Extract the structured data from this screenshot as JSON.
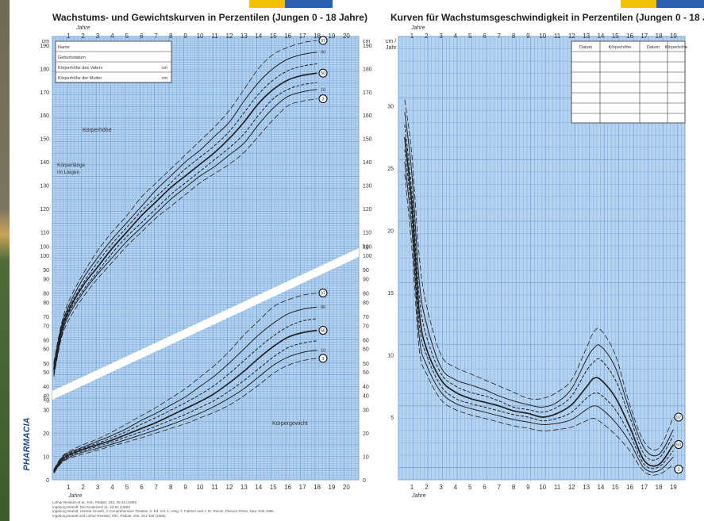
{
  "left": {
    "title": "Wachstums- und Gewichtskurven in Perzentilen (Jungen 0 - 18 Jahre)",
    "top_axis_label": "Jahre",
    "bottom_axis_label": "Jahre",
    "years": [
      "1",
      "2",
      "3",
      "4",
      "5",
      "6",
      "7",
      "8",
      "9",
      "10",
      "11",
      "12",
      "13",
      "14",
      "15",
      "16",
      "17",
      "18",
      "19",
      "20"
    ],
    "unit_cm": "cm",
    "unit_kg": "kg",
    "height_ticks": [
      "40",
      "50",
      "60",
      "70",
      "80",
      "90",
      "100",
      "110",
      "120",
      "130",
      "140",
      "150",
      "160",
      "170",
      "180",
      "190"
    ],
    "weight_ticks": [
      "0",
      "10",
      "20",
      "30",
      "40",
      "50",
      "60",
      "70",
      "80",
      "90",
      "100"
    ],
    "form": [
      {
        "label": "Name",
        "unit": ""
      },
      {
        "label": "Geburtsdatum",
        "unit": ""
      },
      {
        "label": "Körperhöhe des Vaters",
        "unit": "cm"
      },
      {
        "label": "Körperhöhe der Mutter",
        "unit": "cm"
      }
    ],
    "label_height": "Körperhöhe",
    "label_length_1": "Körperlänge",
    "label_length_2": "im Liegen",
    "label_weight": "Körpergewicht",
    "brand": "PHARMACIA",
    "height_percentile_markers": [
      "97",
      "90",
      "50",
      "10",
      "3"
    ],
    "weight_percentile_markers": [
      "97",
      "90",
      "50",
      "10",
      "3"
    ],
    "references": [
      "Lothar Reinken et al., Klin. Pädiatr. 192, 25-33 (1980)",
      "Ingeborg Brandt: Der Kinderarzt 11, 43-51 (1980)",
      "Ingeborg Brandt: Human Growth, A Comprehensive Treatise, 2. Ed. Vol. 1, Hrsg. F. Falkner und J. M. Tanner, Plenum Press, New York 1986",
      "Ingeborg Brandt und Lothar Reinken, Klin. Pädiatr. 200, 451-456 (1988)"
    ]
  },
  "right": {
    "title": "Kurven für Wachstumsgeschwindigkeit in Perzentilen (Jungen 0 - 18 Jahre)",
    "top_axis_label": "Jahre",
    "bottom_axis_label": "Jahre",
    "years": [
      "1",
      "2",
      "3",
      "4",
      "5",
      "6",
      "7",
      "8",
      "9",
      "10",
      "11",
      "12",
      "13",
      "14",
      "15",
      "16",
      "17",
      "18",
      "19"
    ],
    "y_unit_1": "cm /",
    "y_unit_2": "Jahr",
    "y_ticks": [
      "5",
      "10",
      "15",
      "20",
      "25",
      "30"
    ],
    "table_headers": [
      "Datum",
      "Körperhöhe",
      "Datum",
      "Körperhöhe"
    ],
    "percentile_markers": [
      "97",
      "50",
      "3"
    ]
  },
  "colors": {
    "grid_bg": "#b5d2f0",
    "grid_line": "#6f9fd3",
    "curve": "#222222",
    "accent_yellow": "#f2c200",
    "accent_blue": "#2d5fb0"
  },
  "chart_data": [
    {
      "type": "line",
      "title": "Wachstums- und Gewichtskurven in Perzentilen (Jungen 0 - 18 Jahre)",
      "xlabel": "Jahre",
      "ylabel": "cm",
      "xlim": [
        0,
        21
      ],
      "ylim": [
        40,
        195
      ],
      "x": [
        0,
        0.5,
        1,
        2,
        3,
        4,
        5,
        6,
        7,
        8,
        9,
        10,
        11,
        12,
        13,
        14,
        15,
        16,
        17,
        18
      ],
      "series": [
        {
          "name": "97",
          "values": [
            54,
            70,
            80,
            92,
            102,
            110,
            117,
            125,
            131,
            137,
            143,
            149,
            155,
            162,
            171,
            180,
            186,
            189,
            191,
            192
          ]
        },
        {
          "name": "90",
          "values": [
            53,
            69,
            78,
            90,
            99,
            107,
            114,
            121,
            128,
            134,
            140,
            145,
            151,
            157,
            166,
            174,
            180,
            184,
            186,
            187
          ]
        },
        {
          "name": "75",
          "values": [
            52,
            68,
            77,
            88,
            97,
            105,
            112,
            119,
            125,
            131,
            137,
            142,
            147,
            153,
            161,
            169,
            175,
            179,
            181,
            182
          ]
        },
        {
          "name": "50",
          "values": [
            51,
            67,
            76,
            87,
            95,
            103,
            110,
            117,
            123,
            129,
            134,
            139,
            144,
            150,
            157,
            165,
            171,
            175,
            177,
            178
          ]
        },
        {
          "name": "25",
          "values": [
            50,
            66,
            75,
            85,
            93,
            101,
            108,
            114,
            120,
            126,
            131,
            136,
            141,
            146,
            152,
            160,
            167,
            171,
            173,
            174
          ]
        },
        {
          "name": "10",
          "values": [
            49,
            65,
            74,
            84,
            92,
            99,
            106,
            112,
            118,
            124,
            129,
            134,
            138,
            143,
            148,
            156,
            163,
            168,
            170,
            171
          ]
        },
        {
          "name": "3",
          "values": [
            48,
            64,
            72,
            82,
            90,
            97,
            104,
            110,
            116,
            121,
            126,
            131,
            135,
            139,
            144,
            151,
            158,
            164,
            166,
            167
          ]
        }
      ]
    },
    {
      "type": "line",
      "title": "",
      "xlabel": "Jahre",
      "ylabel": "kg",
      "xlim": [
        0,
        21
      ],
      "ylim": [
        0,
        100
      ],
      "x": [
        0,
        0.5,
        1,
        2,
        3,
        4,
        5,
        6,
        7,
        8,
        9,
        10,
        11,
        12,
        13,
        14,
        15,
        16,
        17,
        18
      ],
      "series": [
        {
          "name": "97",
          "values": [
            4.3,
            9.5,
            12,
            15,
            17.5,
            20.5,
            24,
            27.5,
            31,
            35,
            39,
            44,
            49,
            55,
            62,
            68,
            74,
            77,
            79,
            80
          ]
        },
        {
          "name": "90",
          "values": [
            4.0,
            9,
            11.5,
            14,
            16.5,
            19,
            22,
            25.5,
            28.5,
            32,
            35.5,
            40,
            44.5,
            50,
            56,
            62,
            67,
            71,
            73,
            74
          ]
        },
        {
          "name": "75",
          "values": [
            3.8,
            8.6,
            11,
            13.5,
            15.7,
            18,
            20.8,
            23.8,
            26.7,
            29.8,
            33,
            36.5,
            40.5,
            45.5,
            51,
            56.5,
            61.5,
            65.5,
            68,
            69
          ]
        },
        {
          "name": "50",
          "values": [
            3.5,
            8.2,
            10.5,
            13,
            15,
            17,
            19.5,
            22,
            24.5,
            27.5,
            30.5,
            33.5,
            37,
            41.5,
            46.5,
            52,
            57,
            61,
            63,
            64
          ]
        },
        {
          "name": "25",
          "values": [
            3.3,
            7.8,
            10,
            12.4,
            14.3,
            16.2,
            18.4,
            20.6,
            23,
            25.5,
            28,
            31,
            34,
            38,
            42.5,
            47.5,
            52.5,
            56.5,
            58.5,
            59.5
          ]
        },
        {
          "name": "10",
          "values": [
            3.1,
            7.4,
            9.5,
            11.8,
            13.5,
            15.3,
            17.3,
            19.3,
            21.4,
            23.6,
            26,
            28.5,
            31.5,
            35,
            39,
            44,
            49,
            52.5,
            54.5,
            55.5
          ]
        },
        {
          "name": "3",
          "values": [
            2.8,
            7,
            9,
            11,
            12.7,
            14.5,
            16.2,
            18,
            20,
            22,
            24,
            26.5,
            29,
            32,
            36,
            40.5,
            45.5,
            49,
            51,
            52
          ]
        }
      ]
    },
    {
      "type": "line",
      "title": "Kurven für Wachstumsgeschwindigkeit in Perzentilen (Jungen 0 - 18 Jahre)",
      "xlabel": "Jahre",
      "ylabel": "cm / Jahr",
      "xlim": [
        0,
        20
      ],
      "ylim": [
        0,
        35
      ],
      "x": [
        0.5,
        1,
        1.5,
        2,
        3,
        4,
        5,
        6,
        7,
        8,
        9,
        10,
        11,
        12,
        13,
        13.5,
        14,
        15,
        16,
        17,
        18,
        19
      ],
      "series": [
        {
          "name": "97",
          "values": [
            30.5,
            26,
            18,
            14,
            10,
            9,
            8.5,
            8,
            7.5,
            7,
            6.5,
            6.5,
            7,
            8,
            10.5,
            11.8,
            12,
            10,
            6,
            3,
            2.5,
            5
          ]
        },
        {
          "name": "90",
          "values": [
            29.5,
            24.5,
            16,
            12.5,
            9,
            8,
            7.6,
            7.2,
            6.7,
            6.3,
            6,
            5.8,
            6.2,
            7.3,
            9.6,
            10.5,
            10.7,
            9,
            5.5,
            2.5,
            2,
            4
          ]
        },
        {
          "name": "75",
          "values": [
            28.5,
            23,
            14.8,
            11.5,
            8.5,
            7.5,
            7,
            6.7,
            6.3,
            5.8,
            5.6,
            5.4,
            5.8,
            6.7,
            8.7,
            9.4,
            9.6,
            8,
            5,
            2,
            1.7,
            3.5
          ]
        },
        {
          "name": "50",
          "values": [
            27.5,
            22,
            13.5,
            10.5,
            8,
            7,
            6.5,
            6.2,
            5.9,
            5.5,
            5.3,
            5,
            5.3,
            6,
            7.4,
            8.1,
            8,
            6.6,
            4.2,
            1.5,
            1.2,
            2.8
          ]
        },
        {
          "name": "25",
          "values": [
            26.5,
            21,
            12.5,
            10,
            7.5,
            6.5,
            6.1,
            5.8,
            5.5,
            5.2,
            5,
            4.7,
            4.9,
            5.4,
            6.5,
            6.9,
            6.8,
            5.6,
            3.6,
            1.2,
            1,
            2.3
          ]
        },
        {
          "name": "10",
          "values": [
            25.5,
            20,
            11.5,
            9.2,
            7,
            6.1,
            5.7,
            5.4,
            5.1,
            4.8,
            4.6,
            4.4,
            4.5,
            4.8,
            5.6,
            5.9,
            5.7,
            4.6,
            3,
            0.9,
            0.7,
            1.8
          ]
        },
        {
          "name": "3",
          "values": [
            24.5,
            18.5,
            10.5,
            8.5,
            6.4,
            5.6,
            5.2,
            4.9,
            4.6,
            4.3,
            4.1,
            3.9,
            4,
            4.2,
            4.7,
            4.9,
            4.6,
            3.6,
            2.3,
            0.6,
            0.4,
            1.2
          ]
        }
      ]
    }
  ]
}
